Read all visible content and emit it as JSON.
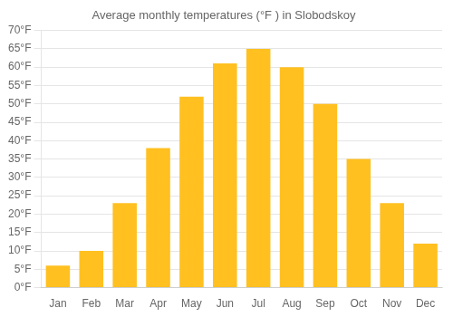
{
  "chart_data": {
    "type": "bar",
    "title": "Average monthly temperatures (°F ) in Slobodskoy",
    "categories": [
      "Jan",
      "Feb",
      "Mar",
      "Apr",
      "May",
      "Jun",
      "Jul",
      "Aug",
      "Sep",
      "Oct",
      "Nov",
      "Dec"
    ],
    "values": [
      6,
      10,
      23,
      38,
      52,
      61,
      65,
      60,
      50,
      35,
      23,
      12
    ],
    "color": "#FFC020",
    "ylim": [
      0,
      70
    ],
    "yticks": [
      {
        "value": 0,
        "label": "0°F"
      },
      {
        "value": 5,
        "label": "5°F"
      },
      {
        "value": 10,
        "label": "10°F"
      },
      {
        "value": 15,
        "label": "15°F"
      },
      {
        "value": 20,
        "label": "20°F"
      },
      {
        "value": 25,
        "label": "25°F"
      },
      {
        "value": 30,
        "label": "30°F"
      },
      {
        "value": 35,
        "label": "35°F"
      },
      {
        "value": 40,
        "label": "40°F"
      },
      {
        "value": 45,
        "label": "45°F"
      },
      {
        "value": 50,
        "label": "50°F"
      },
      {
        "value": 55,
        "label": "55°F"
      },
      {
        "value": 60,
        "label": "60°F"
      },
      {
        "value": 65,
        "label": "65°F"
      },
      {
        "value": 70,
        "label": "70°F"
      }
    ],
    "grid": true
  }
}
